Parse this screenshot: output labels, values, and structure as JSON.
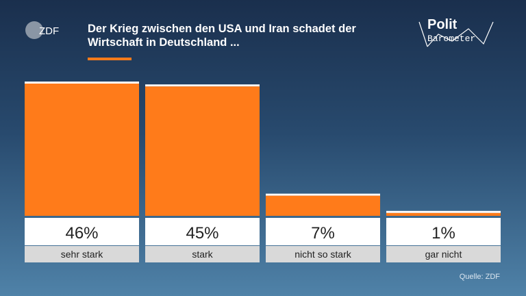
{
  "header": {
    "title_line1": "Der Krieg zwischen den USA und Iran schadet der",
    "title_line2": "Wirtschaft in Deutschland ..."
  },
  "logos": {
    "zdf_text": "ZDF",
    "polit_word": "Polit",
    "barometer_word": "Barometer"
  },
  "source": "Quelle: ZDF",
  "colors": {
    "bar": "#ff7b1a",
    "value_box": "#ffffff",
    "label_box": "#d9d9d9",
    "text": "#222222"
  },
  "chart_data": {
    "type": "bar",
    "title": "Der Krieg zwischen den USA und Iran schadet der Wirtschaft in Deutschland ...",
    "categories": [
      "sehr stark",
      "stark",
      "nicht so stark",
      "gar nicht"
    ],
    "values": [
      46,
      45,
      7,
      1
    ],
    "value_labels": [
      "46%",
      "45%",
      "7%",
      "1%"
    ],
    "ylim": [
      0,
      46
    ],
    "grid": false,
    "legend": "none"
  }
}
